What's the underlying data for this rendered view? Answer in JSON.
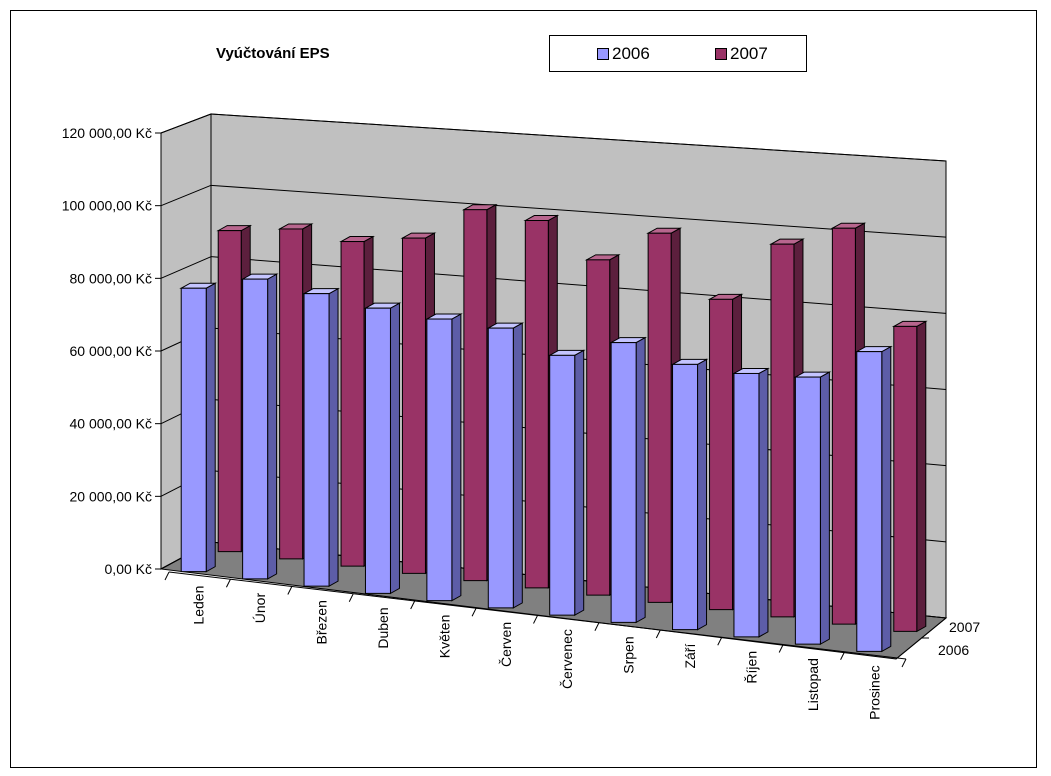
{
  "colors": {
    "series_2006": "#9999ff",
    "series_2006_side": "#5d5da8",
    "series_2006_top": "#c4c4ff",
    "series_2007": "#993366",
    "series_2007_side": "#5c1f3d",
    "series_2007_top": "#b8668e",
    "wall": "#c0c0c0",
    "floor": "#808080"
  },
  "chart_data": {
    "type": "bar",
    "subtype": "3d-clustered-depth",
    "title": "Vyúčtování EPS",
    "categories": [
      "Leden",
      "Únor",
      "Březen",
      "Duben",
      "Květen",
      "Červen",
      "Červenec",
      "Srpen",
      "Září",
      "Říjen",
      "Listopad",
      "Prosinec"
    ],
    "series": [
      {
        "name": "2006",
        "values": [
          78000,
          82500,
          80500,
          78500,
          77500,
          77000,
          71500,
          77000,
          73000,
          72500,
          73500,
          82500
        ]
      },
      {
        "name": "2007",
        "values": [
          90000,
          92500,
          91000,
          94000,
          104000,
          103000,
          94000,
          103500,
          87000,
          104500,
          111000,
          85500
        ]
      }
    ],
    "depth_labels": [
      "2006",
      "2007"
    ],
    "yticks": [
      "0,00 Kč",
      "20 000,00 Kč",
      "40 000,00 Kč",
      "60 000,00 Kč",
      "80 000,00 Kč",
      "100 000,00 Kč",
      "120 000,00 Kč"
    ],
    "ylim": [
      0,
      120000
    ],
    "grid": true,
    "legend_position": "top"
  }
}
